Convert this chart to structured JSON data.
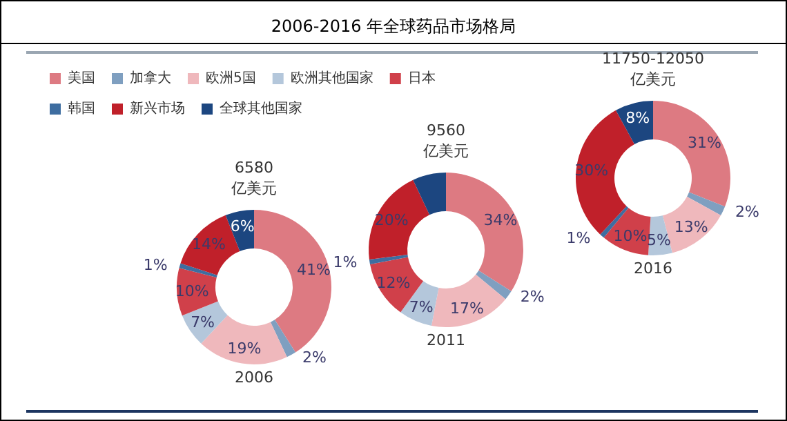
{
  "chart_data": {
    "type": "donut",
    "title": "2006-2016 年全球药品市场格局",
    "annotations": [
      "6580",
      "亿美元",
      "9560",
      "亿美元",
      "11750-12050",
      "亿美元"
    ],
    "legend": "top left",
    "categories": [
      "美国",
      "加拿大",
      "欧洲5国",
      "欧洲其他国家",
      "日本",
      "韩国",
      "新兴市场",
      "全球其他国家"
    ],
    "colors": [
      "#dd7a82",
      "#7f9fc0",
      "#efb8bc",
      "#b4c7db",
      "#d0404a",
      "#3e6da0",
      "#c0202a",
      "#1c4680"
    ],
    "series": [
      {
        "name": "2006",
        "values": [
          41,
          2,
          19,
          7,
          10,
          1,
          14,
          6
        ],
        "value_labels": [
          "41%",
          "2%",
          "19%",
          "7%",
          "10%",
          "1%",
          "14%",
          "6%"
        ]
      },
      {
        "name": "2011",
        "values": [
          34,
          2,
          17,
          7,
          12,
          1,
          20,
          7
        ],
        "value_labels": [
          "34%",
          "2%",
          "17%",
          "7%",
          "12%",
          "1%",
          "20%",
          null
        ]
      },
      {
        "name": "2016",
        "values": [
          31,
          2,
          13,
          5,
          10,
          1,
          30,
          8
        ],
        "value_labels": [
          "31%",
          "2%",
          "13%",
          "5%",
          "10%",
          "1%",
          "30%",
          "8%"
        ]
      }
    ]
  }
}
